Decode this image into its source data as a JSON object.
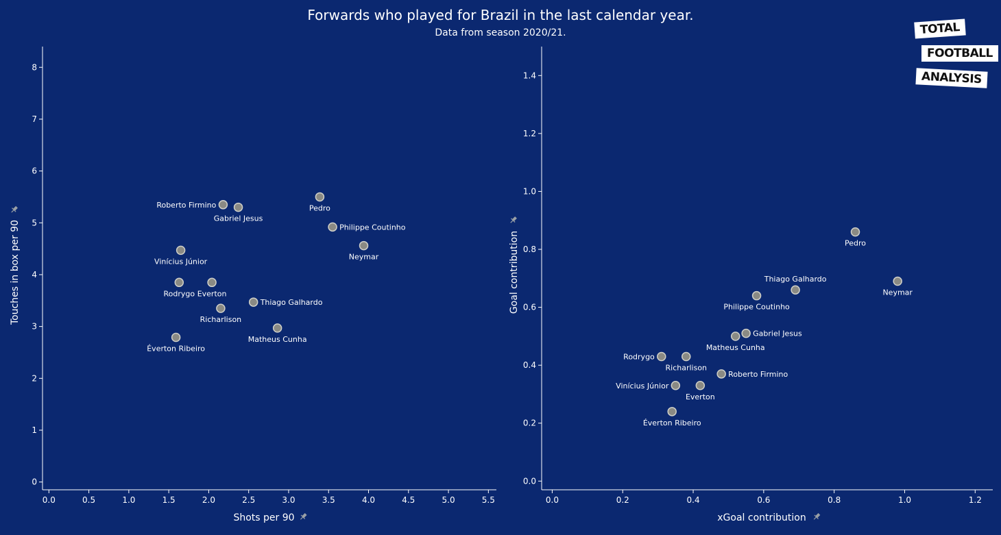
{
  "header": {
    "title": "Forwards who played for Brazil in the last calendar year.",
    "subtitle": "Data from season 2020/21."
  },
  "logo": {
    "line1": "TOTAL",
    "line2": "FOOTBALL",
    "line3": "ANALYSIS"
  },
  "colors": {
    "background": "#0b2870",
    "point_fill": "#8a8a84",
    "point_stroke": "#cfcfc8",
    "axis": "#ffffff",
    "pin_icon": "#9aa0a6"
  },
  "chart_data": [
    {
      "type": "scatter",
      "xlabel": "Shots per 90",
      "ylabel": "Touches in box per 90",
      "xlim": [
        -0.08,
        5.6
      ],
      "ylim": [
        -0.15,
        8.4
      ],
      "xticks": [
        "0.0",
        "0.5",
        "1.0",
        "1.5",
        "2.0",
        "2.5",
        "3.0",
        "3.5",
        "4.0",
        "4.5",
        "5.0",
        "5.5"
      ],
      "yticks": [
        "0",
        "1",
        "2",
        "3",
        "4",
        "5",
        "6",
        "7",
        "8"
      ],
      "grid": false,
      "points": [
        {
          "name": "Roberto Firmino",
          "x": 2.18,
          "y": 5.35,
          "label_pos": "left"
        },
        {
          "name": "Gabriel Jesus",
          "x": 2.37,
          "y": 5.3,
          "label_pos": "below"
        },
        {
          "name": "Pedro",
          "x": 3.39,
          "y": 5.5,
          "label_pos": "below"
        },
        {
          "name": "Philippe Coutinho",
          "x": 3.55,
          "y": 4.92,
          "label_pos": "right"
        },
        {
          "name": "Neymar",
          "x": 3.94,
          "y": 4.56,
          "label_pos": "below"
        },
        {
          "name": "Vinícius Júnior",
          "x": 1.65,
          "y": 4.47,
          "label_pos": "below"
        },
        {
          "name": "Rodrygo",
          "x": 1.63,
          "y": 3.85,
          "label_pos": "below"
        },
        {
          "name": "Everton",
          "x": 2.04,
          "y": 3.85,
          "label_pos": "below"
        },
        {
          "name": "Thiago Galhardo",
          "x": 2.56,
          "y": 3.47,
          "label_pos": "right"
        },
        {
          "name": "Richarlison",
          "x": 2.15,
          "y": 3.35,
          "label_pos": "below"
        },
        {
          "name": "Matheus Cunha",
          "x": 2.86,
          "y": 2.97,
          "label_pos": "below"
        },
        {
          "name": "Éverton Ribeiro",
          "x": 1.59,
          "y": 2.79,
          "label_pos": "below"
        }
      ]
    },
    {
      "type": "scatter",
      "xlabel": "xGoal contribution",
      "ylabel": "Goal contribution",
      "xlim": [
        -0.03,
        1.25
      ],
      "ylim": [
        -0.03,
        1.5
      ],
      "xticks": [
        "0.0",
        "0.2",
        "0.4",
        "0.6",
        "0.8",
        "1.0",
        "1.2"
      ],
      "yticks": [
        "0.0",
        "0.2",
        "0.4",
        "0.6",
        "0.8",
        "1.0",
        "1.2",
        "1.4"
      ],
      "grid": false,
      "points": [
        {
          "name": "Pedro",
          "x": 0.86,
          "y": 0.86,
          "label_pos": "below"
        },
        {
          "name": "Thiago Galhardo",
          "x": 0.69,
          "y": 0.66,
          "label_pos": "above"
        },
        {
          "name": "Neymar",
          "x": 0.98,
          "y": 0.69,
          "label_pos": "below"
        },
        {
          "name": "Philippe Coutinho",
          "x": 0.58,
          "y": 0.64,
          "label_pos": "below"
        },
        {
          "name": "Gabriel Jesus",
          "x": 0.55,
          "y": 0.51,
          "label_pos": "right"
        },
        {
          "name": "Matheus Cunha",
          "x": 0.52,
          "y": 0.5,
          "label_pos": "below"
        },
        {
          "name": "Rodrygo",
          "x": 0.31,
          "y": 0.43,
          "label_pos": "left"
        },
        {
          "name": "Richarlison",
          "x": 0.38,
          "y": 0.43,
          "label_pos": "below"
        },
        {
          "name": "Roberto Firmino",
          "x": 0.48,
          "y": 0.37,
          "label_pos": "right"
        },
        {
          "name": "Vinícius Júnior",
          "x": 0.35,
          "y": 0.33,
          "label_pos": "left"
        },
        {
          "name": "Everton",
          "x": 0.42,
          "y": 0.33,
          "label_pos": "below"
        },
        {
          "name": "Éverton Ribeiro",
          "x": 0.34,
          "y": 0.24,
          "label_pos": "below"
        }
      ]
    }
  ]
}
